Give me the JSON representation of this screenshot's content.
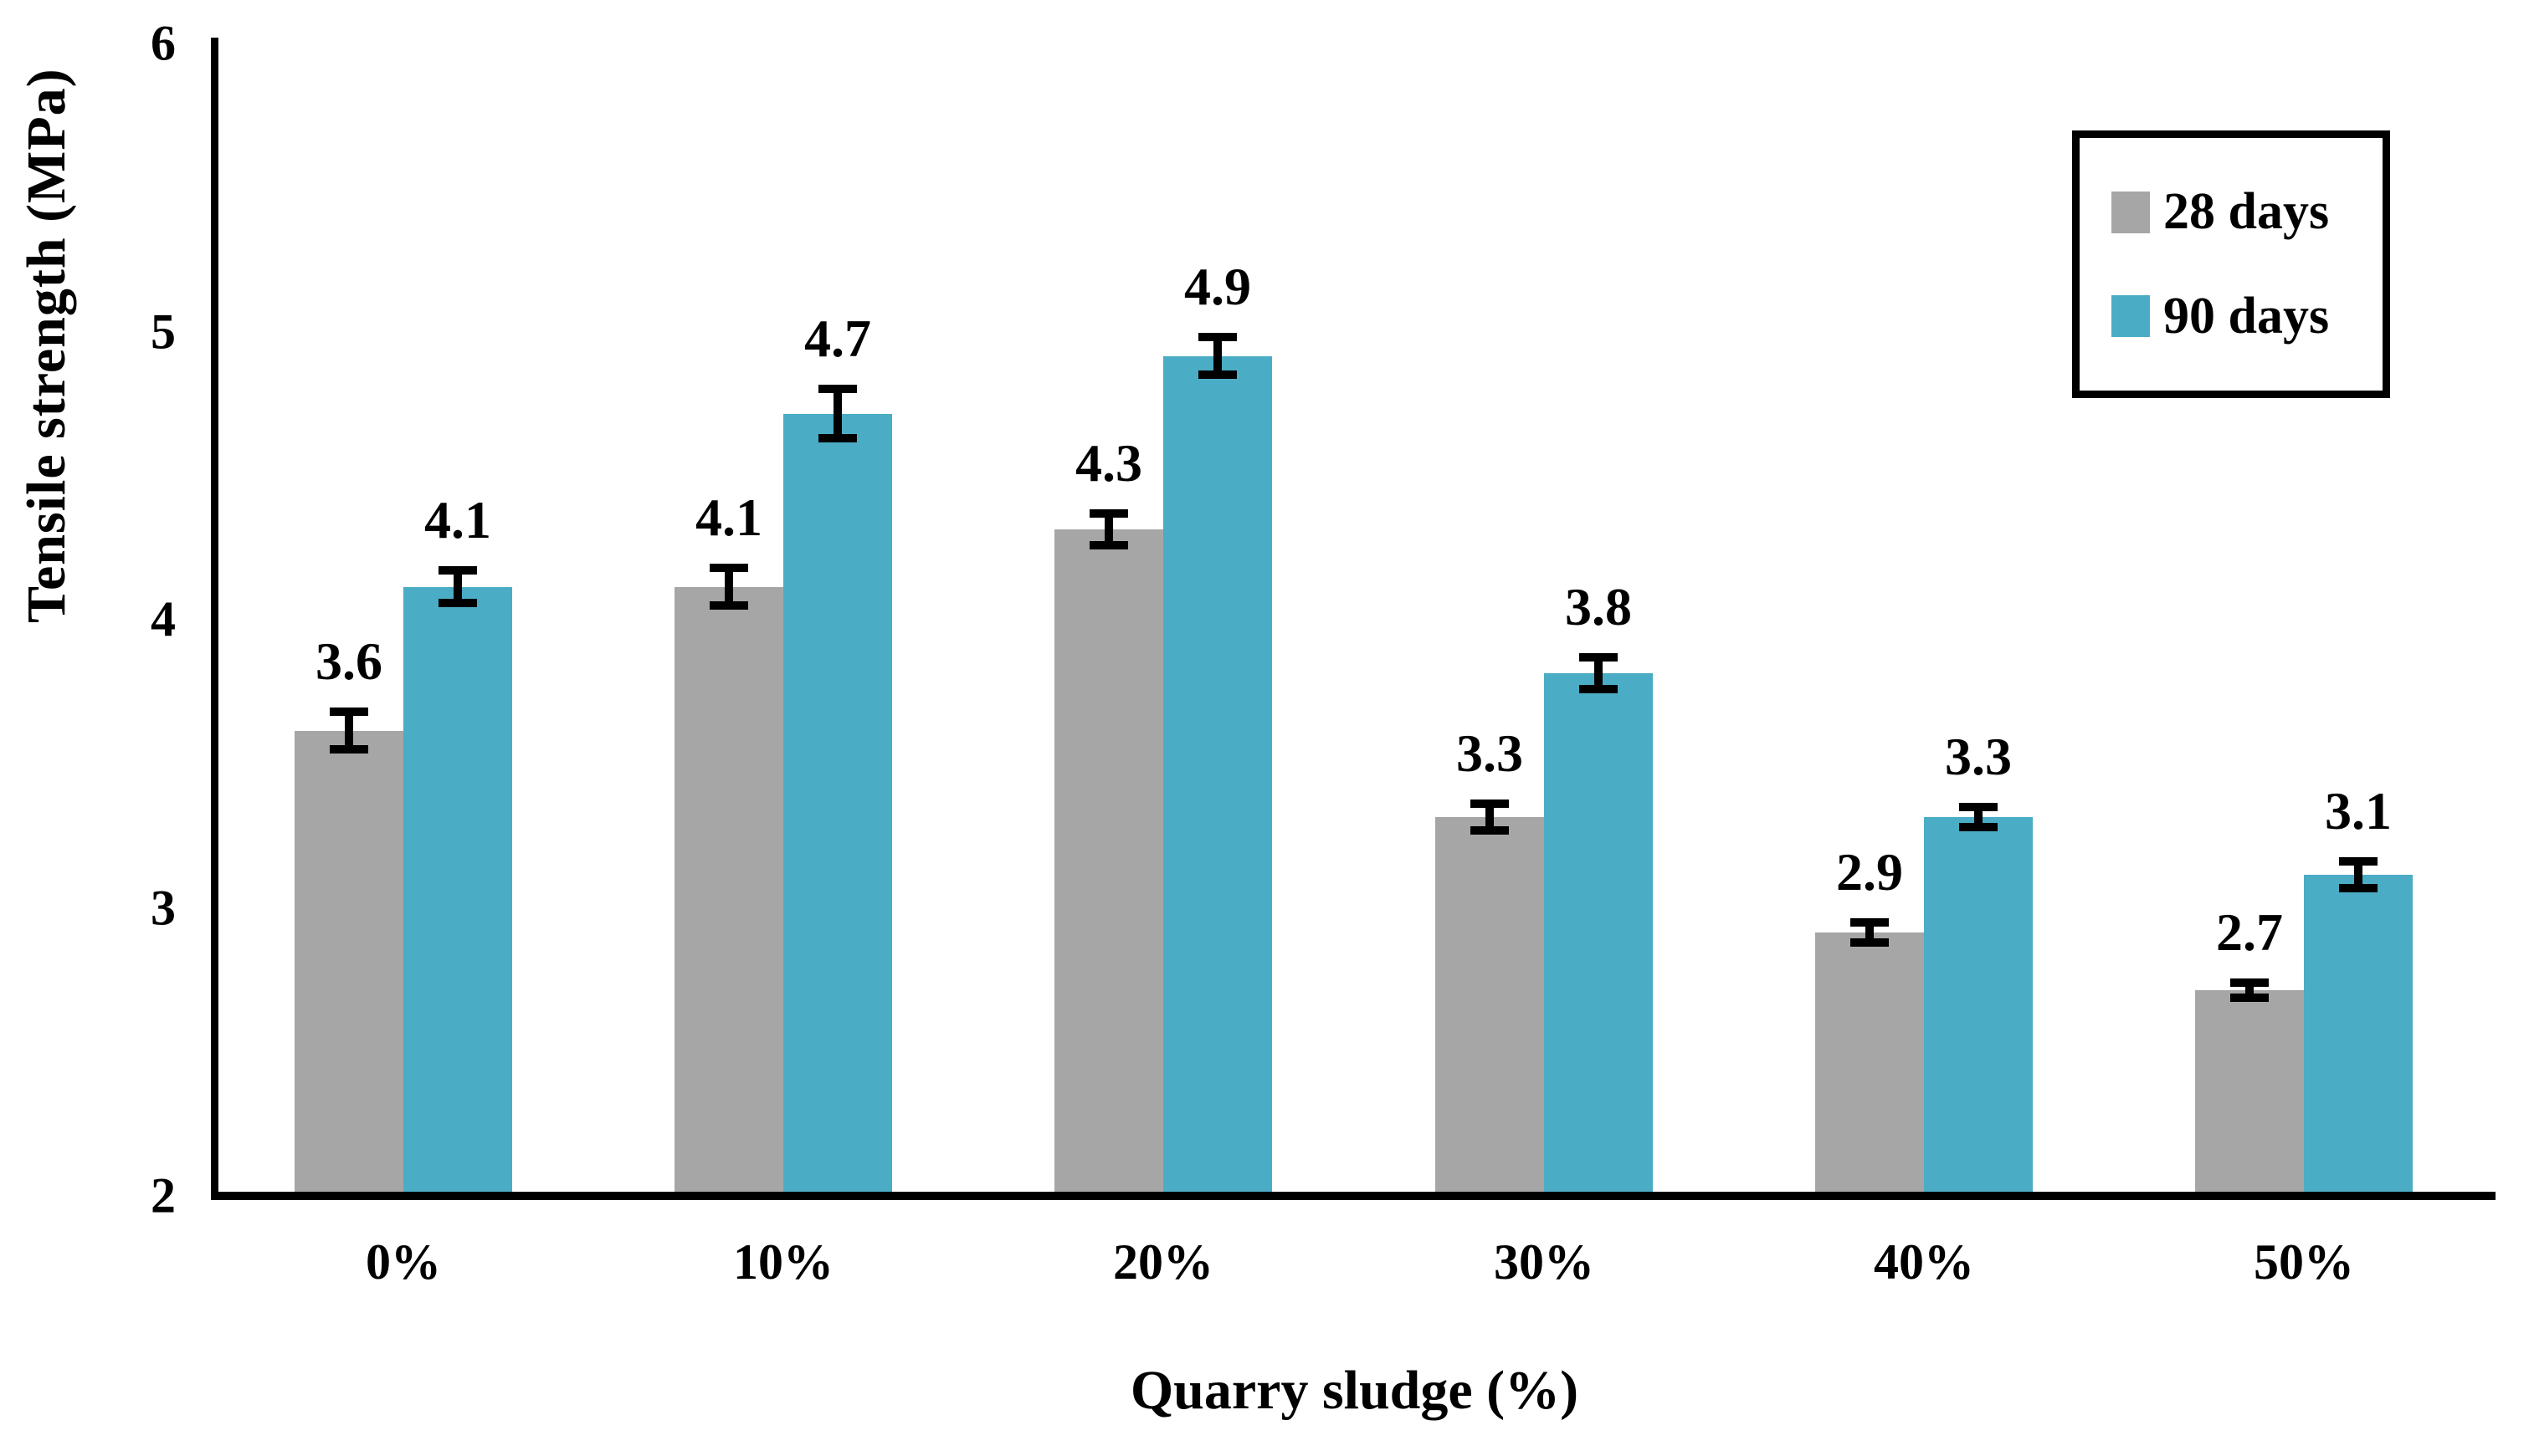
{
  "chart_data": {
    "type": "bar",
    "title": "",
    "xlabel": "Quarry sludge (%)",
    "ylabel": "Tensile strength (MPa)",
    "categories": [
      "0%",
      "10%",
      "20%",
      "30%",
      "40%",
      "50%"
    ],
    "series": [
      {
        "name": "28 days",
        "color": "#A6A6A6",
        "values": [
          3.6,
          4.1,
          4.3,
          3.3,
          2.9,
          2.7
        ],
        "errors": [
          0.08,
          0.08,
          0.07,
          0.06,
          0.05,
          0.04
        ]
      },
      {
        "name": "90 days",
        "color": "#4BACC6",
        "values": [
          4.1,
          4.7,
          4.9,
          3.8,
          3.3,
          3.1
        ],
        "errors": [
          0.07,
          0.1,
          0.08,
          0.07,
          0.05,
          0.06
        ]
      }
    ],
    "data_labels": {
      "series_28_days": [
        "3.6",
        "4.1",
        "4.3",
        "3.3",
        "2.9",
        "2.7"
      ],
      "series_90_days": [
        "4.1",
        "4.7",
        "4.9",
        "3.8",
        "3.3",
        "3.1"
      ]
    },
    "ylim": [
      2,
      6
    ],
    "yticks": [
      2,
      3,
      4,
      5,
      6
    ],
    "grid": false,
    "error_bars": true,
    "legend_position": "top-right",
    "axis_color": "#000000",
    "background_color": "#FFFFFF"
  },
  "legend": {
    "items": [
      {
        "label": "28 days",
        "color": "#A6A6A6"
      },
      {
        "label": "90 days",
        "color": "#4BACC6"
      }
    ]
  }
}
